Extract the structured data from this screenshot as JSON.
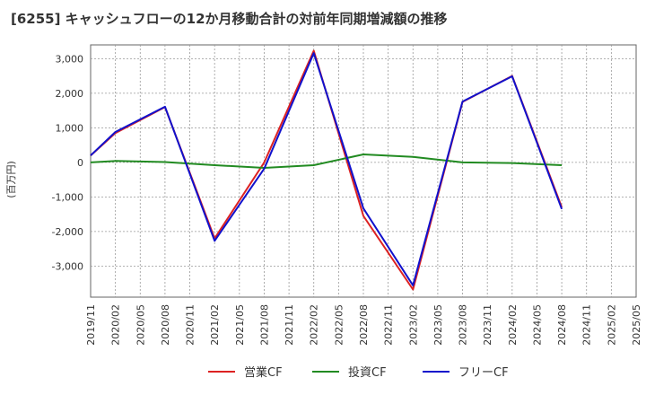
{
  "chart_data": {
    "type": "line",
    "title": "[6255]  キャッシュフローの12か月移動合計の対前年同期増減額の推移",
    "ylabel": "(百万円)",
    "xlabel": "",
    "ylim": [
      -3900,
      3400
    ],
    "yticks": [
      -3000,
      -2000,
      -1000,
      0,
      1000,
      2000,
      3000
    ],
    "ytick_labels": [
      "-3,000",
      "-2,000",
      "-1,000",
      "0",
      "1,000",
      "2,000",
      "3,000"
    ],
    "x": [
      "2019/11",
      "2020/02",
      "2020/05",
      "2020/08",
      "2020/11",
      "2021/02",
      "2021/05",
      "2021/08",
      "2021/11",
      "2022/02",
      "2022/05",
      "2022/08",
      "2022/11",
      "2023/02",
      "2023/05",
      "2023/08",
      "2023/11",
      "2024/02",
      "2024/05",
      "2024/08",
      "2024/11",
      "2025/02",
      "2025/05"
    ],
    "grid": true,
    "legend_position": "bottom",
    "series": [
      {
        "name": "営業CF",
        "color": "#dd2222",
        "values": [
          200,
          850,
          null,
          1600,
          null,
          -2200,
          null,
          0,
          null,
          3230,
          null,
          -1550,
          null,
          -3680,
          null,
          1750,
          null,
          2500,
          null,
          -1300,
          null,
          null,
          null
        ]
      },
      {
        "name": "投資CF",
        "color": "#228B22",
        "values": [
          0,
          40,
          null,
          10,
          null,
          -80,
          null,
          -160,
          null,
          -80,
          null,
          230,
          null,
          160,
          null,
          0,
          null,
          -20,
          null,
          -80,
          null,
          null,
          null
        ]
      },
      {
        "name": "フリーCF",
        "color": "#1111cc",
        "values": [
          200,
          880,
          null,
          1610,
          null,
          -2270,
          null,
          -180,
          null,
          3160,
          null,
          -1330,
          null,
          -3560,
          null,
          1760,
          null,
          2490,
          null,
          -1350,
          null,
          null,
          null
        ]
      }
    ]
  }
}
